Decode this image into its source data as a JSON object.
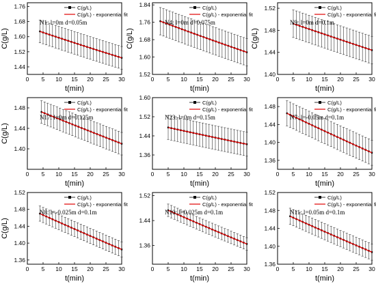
{
  "legend": {
    "data_label": "C(g/L)",
    "fit_label": "C(g/L) - exponential fit"
  },
  "chart_data": [
    {
      "type": "line",
      "annotation": "N1: l=0m d=0.05m",
      "xlabel": "t(min)",
      "ylabel": "C(g/L)",
      "xlim": [
        0,
        30
      ],
      "ylim": [
        1.4,
        1.78
      ],
      "xticks": [
        0,
        5,
        10,
        15,
        20,
        25,
        30
      ],
      "yticks": [
        1.44,
        1.52,
        1.6,
        1.68,
        1.76
      ],
      "series": [
        {
          "x": [
            4,
            30
          ],
          "y_fit": [
            1.628,
            1.488
          ],
          "err": 0.06
        }
      ]
    },
    {
      "type": "line",
      "annotation": "N4: l=0m d=0.075m",
      "xlabel": "t(min)",
      "ylabel": "C(g/L)",
      "xlim": [
        0,
        30
      ],
      "ylim": [
        1.52,
        1.85
      ],
      "xticks": [
        0,
        5,
        10,
        15,
        20,
        25,
        30
      ],
      "yticks": [
        1.52,
        1.6,
        1.68,
        1.76,
        1.84
      ],
      "series": [
        {
          "x": [
            2.5,
            30
          ],
          "y_fit": [
            1.765,
            1.622
          ],
          "err": 0.063
        }
      ]
    },
    {
      "type": "line",
      "annotation": "N9: l=0m d=0.1m",
      "xlabel": "t(min)",
      "ylabel": "C(g/L)",
      "xlim": [
        0,
        30
      ],
      "ylim": [
        1.4,
        1.53
      ],
      "xticks": [
        0,
        5,
        10,
        15,
        20,
        25,
        30
      ],
      "yticks": [
        1.4,
        1.44,
        1.48,
        1.52
      ],
      "series": [
        {
          "x": [
            5,
            30
          ],
          "y_fit": [
            1.492,
            1.444
          ],
          "err": 0.025
        }
      ]
    },
    {
      "type": "line",
      "annotation": "N17: l=0m d=0.125m",
      "xlabel": "t(min)",
      "ylabel": "C(g/L)",
      "xlim": [
        0,
        30
      ],
      "ylim": [
        1.36,
        1.5
      ],
      "xticks": [
        0,
        5,
        10,
        15,
        20,
        25,
        30
      ],
      "yticks": [
        1.4,
        1.44,
        1.48
      ],
      "series": [
        {
          "x": [
            4.5,
            30
          ],
          "y_fit": [
            1.472,
            1.41
          ],
          "err": 0.022
        }
      ]
    },
    {
      "type": "line",
      "annotation": "N23: l=0m d=0.15m",
      "xlabel": "t(min)",
      "ylabel": "",
      "xlim": [
        0,
        30
      ],
      "ylim": [
        1.3,
        1.6
      ],
      "xticks": [
        0,
        5,
        10,
        15,
        20,
        25,
        30
      ],
      "yticks": [
        1.36,
        1.44,
        1.52,
        1.6
      ],
      "series": [
        {
          "x": [
            5,
            30
          ],
          "y_fit": [
            1.475,
            1.405
          ],
          "err": 0.05
        }
      ]
    },
    {
      "type": "line",
      "annotation": "N7: l=-0.05m d=0.1m",
      "xlabel": "t(min)",
      "ylabel": "",
      "xlim": [
        0,
        30
      ],
      "ylim": [
        1.34,
        1.5
      ],
      "xticks": [
        0,
        5,
        10,
        15,
        20,
        25,
        30
      ],
      "yticks": [
        1.36,
        1.4,
        1.44,
        1.48
      ],
      "series": [
        {
          "x": [
            3,
            30
          ],
          "y_fit": [
            1.465,
            1.377
          ],
          "err": 0.028
        }
      ]
    },
    {
      "type": "line",
      "annotation": "N8: l=-0.025m d=0.1m",
      "xlabel": "t(min)",
      "ylabel": "C(g/L)",
      "xlim": [
        0,
        30
      ],
      "ylim": [
        1.35,
        1.52
      ],
      "xticks": [
        0,
        5,
        10,
        15,
        20,
        25,
        30
      ],
      "yticks": [
        1.36,
        1.4,
        1.44,
        1.48,
        1.52
      ],
      "series": [
        {
          "x": [
            4,
            30
          ],
          "y_fit": [
            1.47,
            1.385
          ],
          "err": 0.018
        }
      ]
    },
    {
      "type": "line",
      "annotation": "N10: l=0.025m d=0.1m",
      "xlabel": "t(min)",
      "ylabel": "",
      "xlim": [
        0,
        30
      ],
      "ylim": [
        1.3,
        1.53
      ],
      "xticks": [
        0,
        5,
        10,
        15,
        20,
        25,
        30
      ],
      "yticks": [
        1.36,
        1.44,
        1.52
      ],
      "series": [
        {
          "x": [
            5,
            30
          ],
          "y_fit": [
            1.473,
            1.365
          ],
          "err": 0.02
        }
      ]
    },
    {
      "type": "line",
      "annotation": "N11: l=0.05m d=0.1m",
      "xlabel": "t(min)",
      "ylabel": "",
      "xlim": [
        0,
        30
      ],
      "ylim": [
        1.36,
        1.52
      ],
      "xticks": [
        0,
        5,
        10,
        15,
        20,
        25,
        30
      ],
      "yticks": [
        1.36,
        1.4,
        1.44,
        1.48,
        1.52
      ],
      "series": [
        {
          "x": [
            4,
            30
          ],
          "y_fit": [
            1.467,
            1.387
          ],
          "err": 0.018
        }
      ]
    }
  ]
}
